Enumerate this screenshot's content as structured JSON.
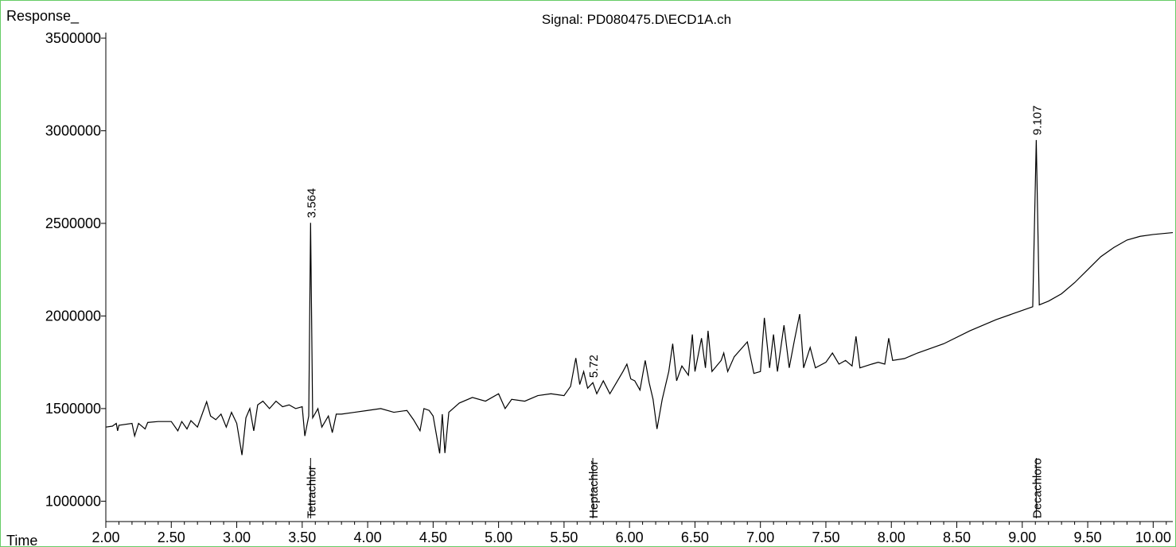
{
  "chart_data": {
    "type": "line",
    "title": "Signal: PD080475.D\\ECD1A.ch",
    "y_label": "Response_",
    "x_label": "Time",
    "color": "#000000",
    "xlim": [
      2,
      10.15
    ],
    "ylim": [
      890000,
      3530000
    ],
    "xticks": [
      {
        "value": 2,
        "label": "2.00"
      },
      {
        "value": 2.5,
        "label": "2.50"
      },
      {
        "value": 3,
        "label": "3.00"
      },
      {
        "value": 3.5,
        "label": "3.50"
      },
      {
        "value": 4,
        "label": "4.00"
      },
      {
        "value": 4.5,
        "label": "4.50"
      },
      {
        "value": 5,
        "label": "5.00"
      },
      {
        "value": 5.5,
        "label": "5.50"
      },
      {
        "value": 6,
        "label": "6.00"
      },
      {
        "value": 6.5,
        "label": "6.50"
      },
      {
        "value": 7,
        "label": "7.00"
      },
      {
        "value": 7.5,
        "label": "7.50"
      },
      {
        "value": 8,
        "label": "8.00"
      },
      {
        "value": 8.5,
        "label": "8.50"
      },
      {
        "value": 9,
        "label": "9.00"
      },
      {
        "value": 9.5,
        "label": "9.50"
      },
      {
        "value": 10,
        "label": "10.00"
      }
    ],
    "xminorticks": [
      2.1,
      2.2,
      2.3,
      2.4,
      2.6,
      2.7,
      2.8,
      2.9,
      3.1,
      3.2,
      3.3,
      3.4,
      3.6,
      3.7,
      3.8,
      3.9,
      4.1,
      4.2,
      4.3,
      4.4,
      4.6,
      4.7,
      4.8,
      4.9,
      5.1,
      5.2,
      5.3,
      5.4,
      5.6,
      5.7,
      5.8,
      5.9,
      6.1,
      6.2,
      6.3,
      6.4,
      6.6,
      6.7,
      6.8,
      6.9,
      7.1,
      7.2,
      7.3,
      7.4,
      7.6,
      7.7,
      7.8,
      7.9,
      8.1,
      8.2,
      8.3,
      8.4,
      8.6,
      8.7,
      8.8,
      8.9,
      9.1,
      9.2,
      9.3,
      9.4,
      9.6,
      9.7,
      9.8,
      9.9,
      10.1
    ],
    "yticks": [
      1000000,
      1500000,
      2000000,
      2500000,
      3000000,
      3500000
    ],
    "x": [
      2.0,
      2.05,
      2.08,
      2.09,
      2.1,
      2.2,
      2.22,
      2.25,
      2.3,
      2.32,
      2.4,
      2.5,
      2.55,
      2.58,
      2.62,
      2.65,
      2.7,
      2.77,
      2.8,
      2.84,
      2.88,
      2.92,
      2.96,
      3.0,
      3.04,
      3.07,
      3.1,
      3.13,
      3.16,
      3.2,
      3.25,
      3.3,
      3.35,
      3.4,
      3.45,
      3.5,
      3.52,
      3.55,
      3.564,
      3.58,
      3.62,
      3.65,
      3.7,
      3.73,
      3.76,
      3.8,
      3.9,
      4.0,
      4.1,
      4.2,
      4.3,
      4.35,
      4.4,
      4.43,
      4.47,
      4.5,
      4.55,
      4.57,
      4.59,
      4.62,
      4.7,
      4.8,
      4.9,
      5.0,
      5.05,
      5.1,
      5.2,
      5.3,
      5.4,
      5.5,
      5.55,
      5.59,
      5.62,
      5.65,
      5.68,
      5.72,
      5.75,
      5.8,
      5.85,
      5.9,
      5.95,
      5.98,
      6.01,
      6.04,
      6.08,
      6.12,
      6.15,
      6.18,
      6.21,
      6.25,
      6.3,
      6.33,
      6.36,
      6.4,
      6.45,
      6.48,
      6.5,
      6.55,
      6.58,
      6.6,
      6.63,
      6.7,
      6.72,
      6.75,
      6.8,
      6.85,
      6.9,
      6.95,
      7.0,
      7.03,
      7.07,
      7.1,
      7.13,
      7.18,
      7.22,
      7.26,
      7.3,
      7.33,
      7.38,
      7.42,
      7.5,
      7.55,
      7.6,
      7.65,
      7.7,
      7.73,
      7.76,
      7.85,
      7.9,
      7.95,
      7.98,
      8.01,
      8.1,
      8.2,
      8.4,
      8.6,
      8.8,
      9.0,
      9.08,
      9.107,
      9.13,
      9.2,
      9.3,
      9.4,
      9.5,
      9.6,
      9.7,
      9.8,
      9.9,
      10.0,
      10.15
    ],
    "values": [
      1400000,
      1405000,
      1420000,
      1380000,
      1410000,
      1420000,
      1352000,
      1420000,
      1390000,
      1425000,
      1430000,
      1430000,
      1380000,
      1430000,
      1390000,
      1435000,
      1400000,
      1537000,
      1460000,
      1440000,
      1470000,
      1400000,
      1480000,
      1420000,
      1249000,
      1450000,
      1500000,
      1380000,
      1520000,
      1540000,
      1500000,
      1540000,
      1510000,
      1520000,
      1500000,
      1510000,
      1352000,
      1460000,
      2503000,
      1450000,
      1500000,
      1400000,
      1460000,
      1370000,
      1470000,
      1470000,
      1480000,
      1490000,
      1500000,
      1480000,
      1490000,
      1440000,
      1380000,
      1500000,
      1490000,
      1460000,
      1258000,
      1470000,
      1260000,
      1480000,
      1530000,
      1560000,
      1540000,
      1580000,
      1500000,
      1550000,
      1540000,
      1570000,
      1580000,
      1570000,
      1620000,
      1773000,
      1630000,
      1700000,
      1610000,
      1640000,
      1580000,
      1650000,
      1580000,
      1640000,
      1700000,
      1740000,
      1660000,
      1650000,
      1600000,
      1760000,
      1640000,
      1550000,
      1390000,
      1550000,
      1700000,
      1850000,
      1650000,
      1730000,
      1680000,
      1900000,
      1700000,
      1880000,
      1720000,
      1920000,
      1700000,
      1760000,
      1800000,
      1700000,
      1780000,
      1820000,
      1860000,
      1690000,
      1700000,
      1990000,
      1720000,
      1900000,
      1700000,
      1950000,
      1720000,
      1870000,
      2010000,
      1720000,
      1830000,
      1720000,
      1750000,
      1800000,
      1740000,
      1760000,
      1730000,
      1890000,
      1720000,
      1740000,
      1750000,
      1740000,
      1880000,
      1760000,
      1770000,
      1800000,
      1850000,
      1920000,
      1980000,
      2030000,
      2050000,
      2950000,
      2060000,
      2080000,
      2120000,
      2180000,
      2250000,
      2320000,
      2370000,
      2410000,
      2430000,
      2440000,
      2450000
    ],
    "peaks": [
      {
        "rt": 3.564,
        "name": "Tetrachlor"
      },
      {
        "rt": 5.72,
        "name": "Heptachlor"
      },
      {
        "rt": 9.107,
        "name": "Decachloro"
      }
    ]
  }
}
